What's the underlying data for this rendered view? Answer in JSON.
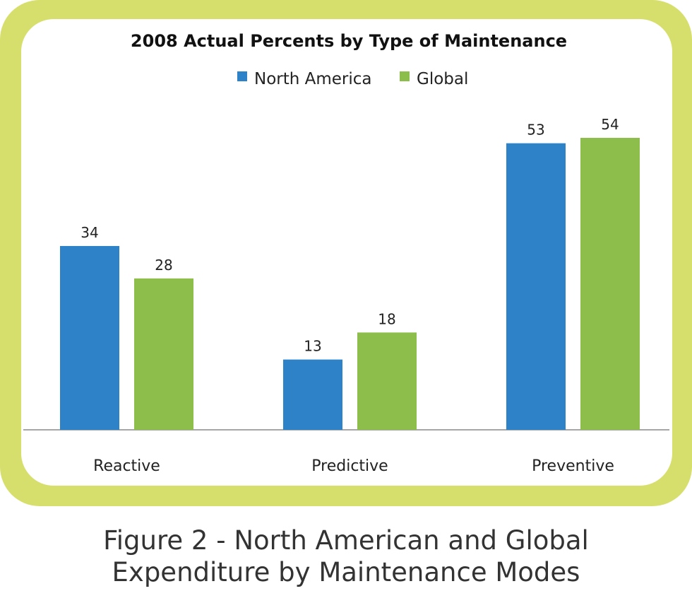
{
  "chart_data": {
    "type": "bar",
    "title": "2008 Actual Percents by Type of Maintenance",
    "categories": [
      "Reactive",
      "Predictive",
      "Preventive"
    ],
    "series": [
      {
        "name": "North America",
        "values": [
          34,
          13,
          53
        ],
        "color": "#2d82c8"
      },
      {
        "name": "Global",
        "values": [
          28,
          18,
          54
        ],
        "color": "#8dbd4b"
      }
    ],
    "ylim": [
      0,
      54
    ],
    "grid": false,
    "legend": "top-center",
    "data_labels": true
  },
  "caption": {
    "line1": "Figure 2 - North American and Global",
    "line2": "Expenditure by Maintenance Modes"
  },
  "colors": {
    "frame": "#d6df6b",
    "panel": "#ffffff"
  }
}
